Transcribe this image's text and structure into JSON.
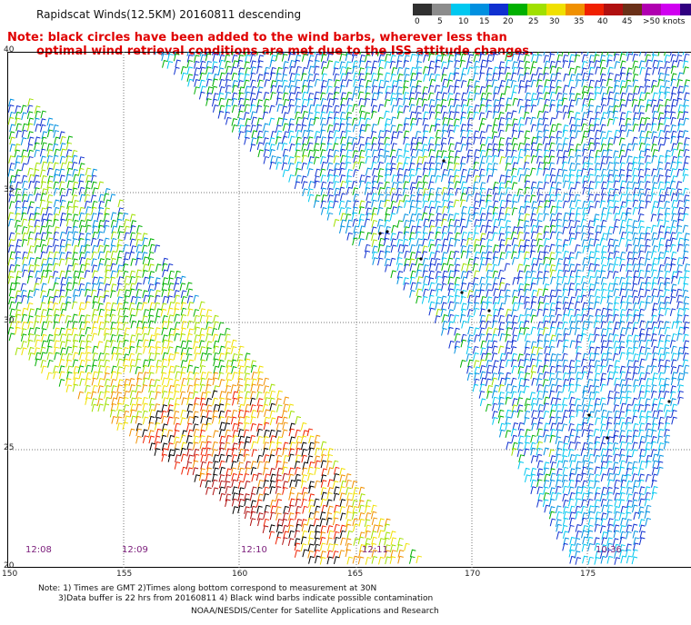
{
  "header": {
    "title": "Rapidscat Winds(12.5KM) 20160811 descending",
    "note_line1": "Note: black circles have been added to the wind barbs, wherever less than",
    "note_line2": "optimal wind retrieval conditions are met due to the ISS attitude changes."
  },
  "legend": {
    "colors": [
      "#303030",
      "#8c8c8c",
      "#00c8f0",
      "#0090e0",
      "#1030d0",
      "#00b000",
      "#a0e000",
      "#f0e000",
      "#f09000",
      "#f02000",
      "#b01010",
      "#6a3018",
      "#b000b0",
      "#d000f0",
      "#300080"
    ],
    "labels": [
      "0",
      "5",
      "10",
      "15",
      "20",
      "25",
      "30",
      "35",
      "40",
      "45",
      ">50 knots"
    ]
  },
  "map": {
    "latitudes": [
      "40",
      "35",
      "30",
      "25",
      "20"
    ],
    "longitudes": [
      "150",
      "155",
      "160",
      "165",
      "170",
      "175"
    ],
    "times": [
      "12:08",
      "12:09",
      "12:10",
      "12:11",
      "10:36"
    ]
  },
  "footer": {
    "line1": "Note: 1) Times are GMT 2)Times along bottom correspond to measurement at 30N",
    "line2": "3)Data buffer is 22 hrs from 20160811 4) Black wind barbs indicate possible contamination",
    "line3": "NOAA/NESDIS/Center for Satellite Applications and Research"
  }
}
